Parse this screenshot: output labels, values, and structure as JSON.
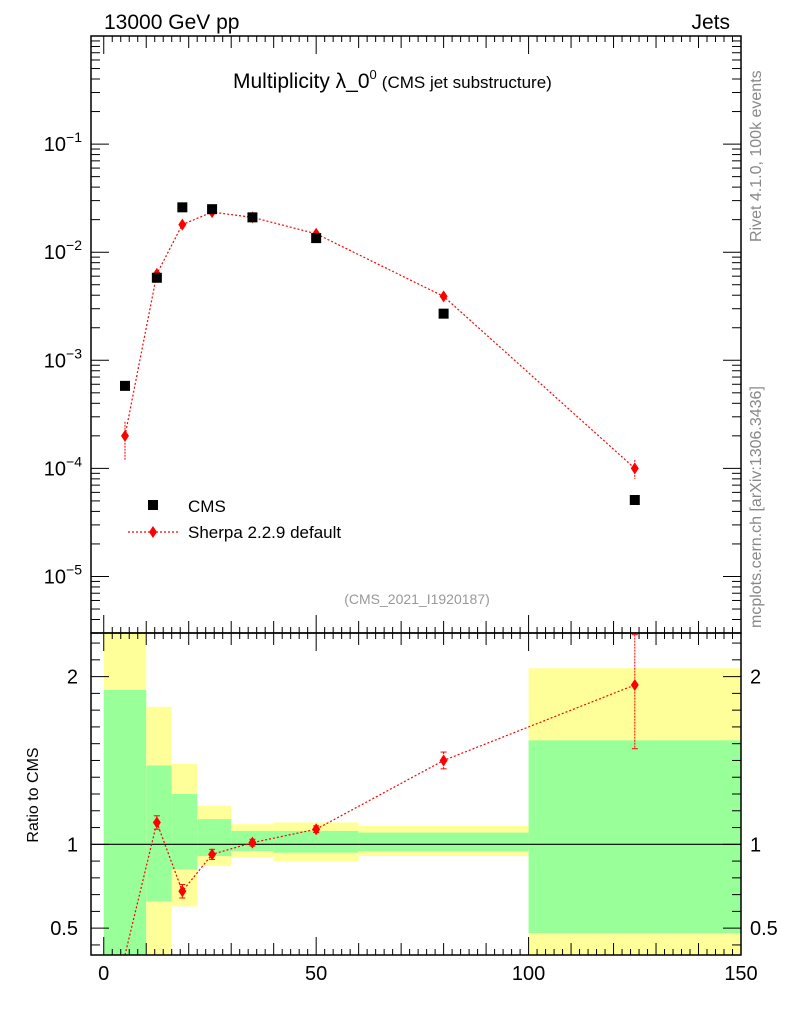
{
  "header": {
    "left": "13000 GeV pp",
    "right": "Jets"
  },
  "title": {
    "main": "Multiplicity λ_0",
    "superscript": "0",
    "sub": "(CMS jet substructure)"
  },
  "analysis_tag": "(CMS_2021_I1920187)",
  "side_text": {
    "top": "Rivet 4.1.0,  100k events",
    "bottom": "mcplots.cern.ch [arXiv:1306.3436]"
  },
  "legend": {
    "data_label": "CMS",
    "mc_label": "Sherpa 2.2.9 default"
  },
  "ratio_ylabel": "Ratio to CMS",
  "colors": {
    "data": "#000000",
    "mc": "#ff0000",
    "band_inner": "#99ff99",
    "band_outer": "#ffff99"
  },
  "chart_data": [
    {
      "type": "scatter",
      "panel": "main",
      "yscale": "log",
      "xlim": [
        -3,
        150
      ],
      "ylim": [
        3e-06,
        1
      ],
      "yticks": [
        {
          "value": 0.1,
          "base": "10",
          "exp": "−1"
        },
        {
          "value": 0.01,
          "base": "10",
          "exp": "−2"
        },
        {
          "value": 0.001,
          "base": "10",
          "exp": "−3"
        },
        {
          "value": 0.0001,
          "base": "10",
          "exp": "−4"
        },
        {
          "value": 1e-05,
          "base": "10",
          "exp": "−5"
        }
      ],
      "series": [
        {
          "name": "CMS",
          "x": [
            5,
            12.5,
            18.5,
            25.5,
            35,
            50,
            80,
            125
          ],
          "y": [
            0.00058,
            0.0058,
            0.026,
            0.025,
            0.021,
            0.0135,
            0.0027,
            5.1e-05
          ]
        },
        {
          "name": "Sherpa 2.2.9 default",
          "x": [
            5,
            12.5,
            18.5,
            25.5,
            35,
            50,
            80,
            125
          ],
          "y": [
            0.0002,
            0.0063,
            0.018,
            0.0235,
            0.021,
            0.0148,
            0.0039,
            0.0001
          ],
          "yerr_low": [
            8e-05,
            0.0004,
            0.0008,
            0.0008,
            0.0006,
            0.0005,
            0.0002,
            2e-05
          ],
          "yerr_high": [
            7e-05,
            0.0004,
            0.0008,
            0.0008,
            0.0006,
            0.0005,
            0.0002,
            2e-05
          ]
        }
      ]
    },
    {
      "type": "scatter",
      "panel": "ratio",
      "ylabel": "Ratio to CMS",
      "xlim": [
        -3,
        150
      ],
      "ylim": [
        0.34,
        2.26
      ],
      "yscale": "linear",
      "xticks": [
        0,
        50,
        100,
        150
      ],
      "yticks": [
        0.5,
        1,
        2
      ],
      "bands": [
        {
          "x0": 0,
          "x1": 10,
          "inner": [
            0,
            1.92
          ],
          "outer": [
            0,
            2.3
          ]
        },
        {
          "x0": 10,
          "x1": 16,
          "inner": [
            0.66,
            1.47
          ],
          "outer": [
            0,
            1.82
          ]
        },
        {
          "x0": 16,
          "x1": 22,
          "inner": [
            0.85,
            1.3
          ],
          "outer": [
            0.63,
            1.48
          ]
        },
        {
          "x0": 22,
          "x1": 30,
          "inner": [
            0.93,
            1.15
          ],
          "outer": [
            0.87,
            1.23
          ]
        },
        {
          "x0": 30,
          "x1": 40,
          "inner": [
            0.96,
            1.08
          ],
          "outer": [
            0.92,
            1.12
          ]
        },
        {
          "x0": 40,
          "x1": 60,
          "inner": [
            0.95,
            1.08
          ],
          "outer": [
            0.9,
            1.13
          ]
        },
        {
          "x0": 60,
          "x1": 100,
          "inner": [
            0.96,
            1.07
          ],
          "outer": [
            0.93,
            1.11
          ]
        },
        {
          "x0": 100,
          "x1": 150,
          "inner": [
            0.47,
            1.62
          ],
          "outer": [
            0,
            2.05
          ]
        }
      ],
      "series": [
        {
          "name": "Sherpa 2.2.9 default",
          "x": [
            5,
            12.5,
            18.5,
            25.5,
            35,
            50,
            80,
            125
          ],
          "y": [
            0.34,
            1.13,
            0.72,
            0.94,
            1.01,
            1.09,
            1.5,
            1.95
          ],
          "yerr_low": [
            0.0,
            0.04,
            0.04,
            0.03,
            0.02,
            0.02,
            0.05,
            0.38
          ],
          "yerr_high": [
            0.0,
            0.04,
            0.04,
            0.03,
            0.02,
            0.02,
            0.05,
            0.3
          ]
        }
      ]
    }
  ]
}
